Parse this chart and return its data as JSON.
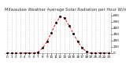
{
  "title": "Milwaukee Weather Average Solar Radiation per Hour W/m2 (Last 24 Hours)",
  "hours": [
    0,
    1,
    2,
    3,
    4,
    5,
    6,
    7,
    8,
    9,
    10,
    11,
    12,
    13,
    14,
    15,
    16,
    17,
    18,
    19,
    20,
    21,
    22,
    23
  ],
  "values": [
    0,
    0,
    0,
    0,
    0,
    0,
    0,
    15,
    80,
    180,
    320,
    480,
    580,
    560,
    440,
    310,
    180,
    80,
    20,
    2,
    0,
    0,
    0,
    0
  ],
  "line_color": "#ff0000",
  "marker_color": "#000000",
  "grid_color": "#aaaaaa",
  "bg_color": "#ffffff",
  "ylim": [
    0,
    650
  ],
  "yticks": [
    0,
    100,
    200,
    300,
    400,
    500,
    600
  ],
  "title_fontsize": 3.8,
  "tick_fontsize": 3.0
}
